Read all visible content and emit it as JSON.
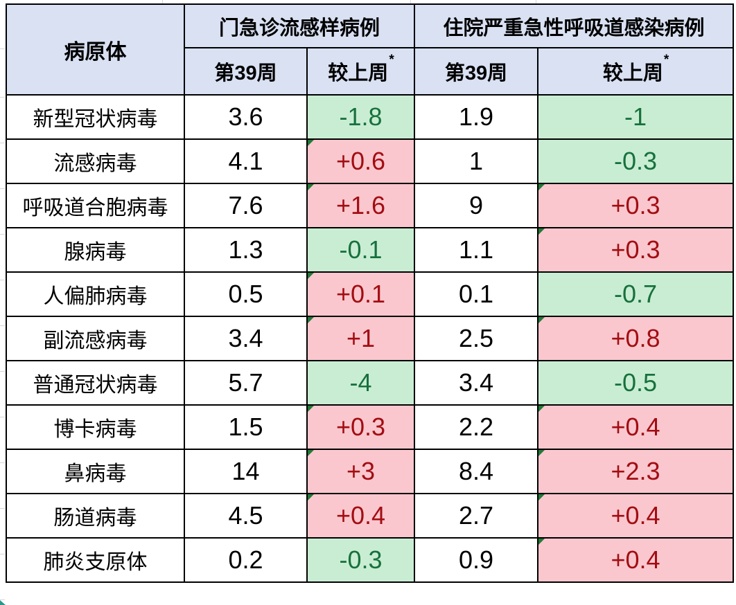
{
  "colors": {
    "header_bg": "#D9E1F3",
    "increase_bg": "#FAC7CE",
    "increase_text": "#A20D12",
    "decrease_bg": "#C9EDD3",
    "decrease_text": "#17713D",
    "flag": "#217A38",
    "border": "#000000",
    "margin_gridline": "#D6D6D6",
    "corner_artifact": "#2A968C"
  },
  "table": {
    "header": {
      "pathogen_label": "病原体",
      "outpatient_title": "门急诊流感样病例",
      "inpatient_title": "住院严重急性呼吸道感染病例",
      "week_label": "第39周",
      "change_label": "较上周",
      "change_footnote_mark": "*"
    },
    "rows": [
      {
        "pathogen": "新型冠状病毒",
        "opd_week": "3.6",
        "opd_change": "-1.8",
        "opd_trend": "decrease",
        "sari_week": "1.9",
        "sari_change": "-1",
        "sari_trend": "decrease"
      },
      {
        "pathogen": "流感病毒",
        "opd_week": "4.1",
        "opd_change": "+0.6",
        "opd_trend": "increase",
        "sari_week": "1",
        "sari_change": "-0.3",
        "sari_trend": "decrease"
      },
      {
        "pathogen": "呼吸道合胞病毒",
        "opd_week": "7.6",
        "opd_change": "+1.6",
        "opd_trend": "increase",
        "sari_week": "9",
        "sari_change": "+0.3",
        "sari_trend": "increase"
      },
      {
        "pathogen": "腺病毒",
        "opd_week": "1.3",
        "opd_change": "-0.1",
        "opd_trend": "decrease",
        "sari_week": "1.1",
        "sari_change": "+0.3",
        "sari_trend": "increase"
      },
      {
        "pathogen": "人偏肺病毒",
        "opd_week": "0.5",
        "opd_change": "+0.1",
        "opd_trend": "increase",
        "sari_week": "0.1",
        "sari_change": "-0.7",
        "sari_trend": "decrease"
      },
      {
        "pathogen": "副流感病毒",
        "opd_week": "3.4",
        "opd_change": "+1",
        "opd_trend": "increase",
        "sari_week": "2.5",
        "sari_change": "+0.8",
        "sari_trend": "increase"
      },
      {
        "pathogen": "普通冠状病毒",
        "opd_week": "5.7",
        "opd_change": "-4",
        "opd_trend": "decrease",
        "sari_week": "3.4",
        "sari_change": "-0.5",
        "sari_trend": "decrease"
      },
      {
        "pathogen": "博卡病毒",
        "opd_week": "1.5",
        "opd_change": "+0.3",
        "opd_trend": "increase",
        "sari_week": "2.2",
        "sari_change": "+0.4",
        "sari_trend": "increase"
      },
      {
        "pathogen": "鼻病毒",
        "opd_week": "14",
        "opd_change": "+3",
        "opd_trend": "increase",
        "sari_week": "8.4",
        "sari_change": "+2.3",
        "sari_trend": "increase"
      },
      {
        "pathogen": "肠道病毒",
        "opd_week": "4.5",
        "opd_change": "+0.4",
        "opd_trend": "increase",
        "sari_week": "2.7",
        "sari_change": "+0.4",
        "sari_trend": "increase"
      },
      {
        "pathogen": "肺炎支原体",
        "opd_week": "0.2",
        "opd_change": "-0.3",
        "opd_trend": "decrease",
        "sari_week": "0.9",
        "sari_change": "+0.4",
        "sari_trend": "increase"
      }
    ]
  }
}
